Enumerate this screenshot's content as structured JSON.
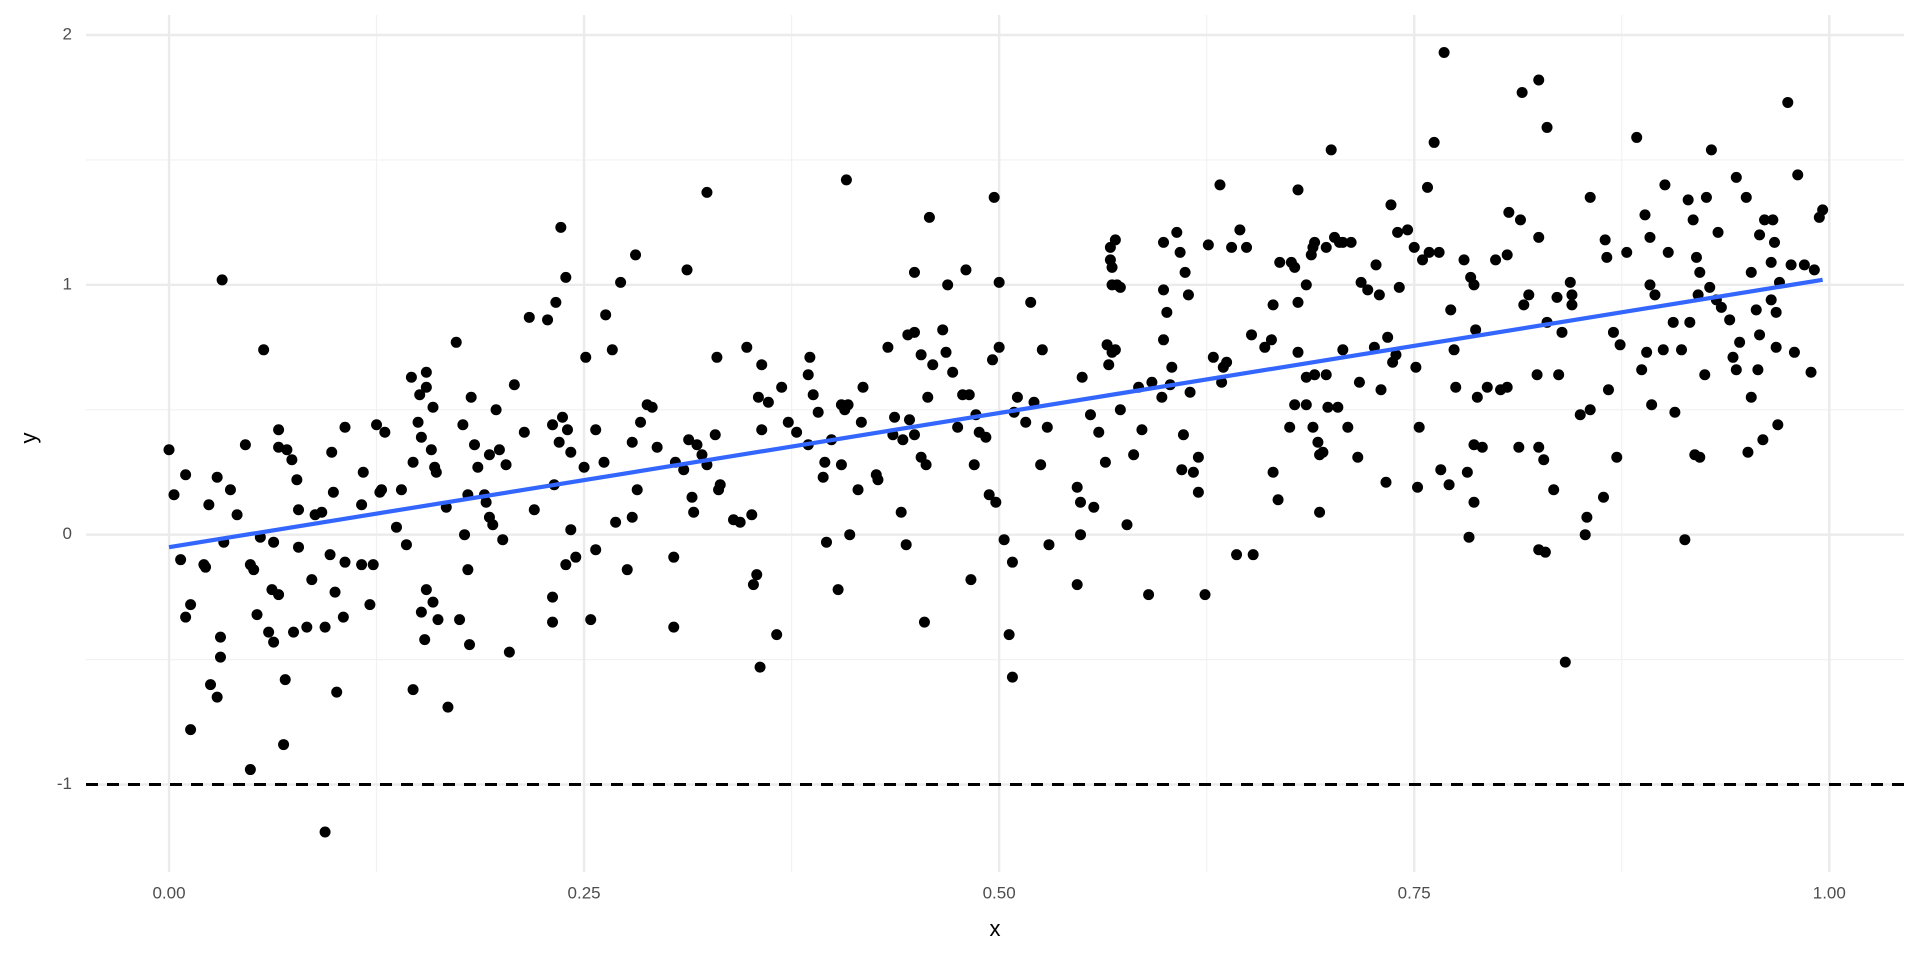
{
  "chart_data": {
    "type": "scatter",
    "x_label": "x",
    "y_label": "y",
    "xlim": [
      -0.05,
      1.045
    ],
    "ylim": [
      -1.35,
      2.08
    ],
    "xticks": [
      {
        "value": 0,
        "label": "0.00"
      },
      {
        "value": 0.25,
        "label": "0.25"
      },
      {
        "value": 0.5,
        "label": "0.50"
      },
      {
        "value": 0.75,
        "label": "0.75"
      },
      {
        "value": 1,
        "label": "1.00"
      }
    ],
    "yticks": [
      -1,
      0,
      1,
      2
    ],
    "xminor": [
      0.125,
      0.375,
      0.625,
      0.875
    ],
    "yminor": [
      -0.5,
      0.5,
      1.5
    ],
    "grid": true,
    "hline": {
      "y": -1,
      "color": "#000000",
      "dashed": true
    },
    "series": [
      {
        "type": "scatter",
        "color": "#000000",
        "x": [
          0.0,
          0.003,
          0.007,
          0.01,
          0.01,
          0.013,
          0.013,
          0.021,
          0.022,
          0.024,
          0.025,
          0.029,
          0.029,
          0.031,
          0.031,
          0.032,
          0.033,
          0.037,
          0.041,
          0.046,
          0.049,
          0.049,
          0.051,
          0.053,
          0.055,
          0.057,
          0.06,
          0.062,
          0.063,
          0.063,
          0.066,
          0.066,
          0.066,
          0.069,
          0.07,
          0.071,
          0.074,
          0.075,
          0.077,
          0.078,
          0.078,
          0.083,
          0.086,
          0.088,
          0.092,
          0.094,
          0.094,
          0.097,
          0.098,
          0.099,
          0.1,
          0.101,
          0.105,
          0.106,
          0.106,
          0.116,
          0.116,
          0.117,
          0.121,
          0.123,
          0.125,
          0.127,
          0.128,
          0.13,
          0.137,
          0.14,
          0.143,
          0.146,
          0.147,
          0.147,
          0.15,
          0.151,
          0.152,
          0.152,
          0.154,
          0.155,
          0.155,
          0.155,
          0.158,
          0.159,
          0.159,
          0.16,
          0.161,
          0.162,
          0.167,
          0.168,
          0.173,
          0.175,
          0.177,
          0.178,
          0.18,
          0.18,
          0.181,
          0.182,
          0.184,
          0.186,
          0.19,
          0.191,
          0.193,
          0.193,
          0.195,
          0.197,
          0.199,
          0.201,
          0.203,
          0.205,
          0.208,
          0.214,
          0.217,
          0.22,
          0.228,
          0.231,
          0.231,
          0.231,
          0.232,
          0.233,
          0.235,
          0.236,
          0.237,
          0.239,
          0.239,
          0.24,
          0.242,
          0.242,
          0.245,
          0.25,
          0.251,
          0.254,
          0.257,
          0.257,
          0.262,
          0.263,
          0.267,
          0.269,
          0.272,
          0.276,
          0.279,
          0.279,
          0.281,
          0.282,
          0.284,
          0.288,
          0.291,
          0.294,
          0.304,
          0.304,
          0.305,
          0.31,
          0.312,
          0.313,
          0.315,
          0.316,
          0.318,
          0.321,
          0.324,
          0.324,
          0.329,
          0.33,
          0.331,
          0.332,
          0.34,
          0.344,
          0.348,
          0.351,
          0.352,
          0.354,
          0.355,
          0.356,
          0.357,
          0.357,
          0.361,
          0.366,
          0.369,
          0.373,
          0.378,
          0.385,
          0.385,
          0.386,
          0.388,
          0.391,
          0.394,
          0.395,
          0.396,
          0.399,
          0.403,
          0.405,
          0.405,
          0.407,
          0.408,
          0.409,
          0.41,
          0.415,
          0.417,
          0.418,
          0.426,
          0.427,
          0.433,
          0.436,
          0.437,
          0.441,
          0.442,
          0.444,
          0.445,
          0.446,
          0.449,
          0.449,
          0.449,
          0.453,
          0.453,
          0.455,
          0.456,
          0.457,
          0.458,
          0.46,
          0.466,
          0.468,
          0.469,
          0.472,
          0.475,
          0.478,
          0.48,
          0.482,
          0.483,
          0.485,
          0.486,
          0.488,
          0.492,
          0.494,
          0.496,
          0.497,
          0.498,
          0.5,
          0.5,
          0.503,
          0.506,
          0.508,
          0.508,
          0.509,
          0.511,
          0.516,
          0.519,
          0.521,
          0.525,
          0.526,
          0.529,
          0.53,
          0.547,
          0.547,
          0.549,
          0.549,
          0.55,
          0.555,
          0.557,
          0.56,
          0.564,
          0.565,
          0.566,
          0.567,
          0.567,
          0.568,
          0.568,
          0.568,
          0.57,
          0.57,
          0.571,
          0.573,
          0.573,
          0.577,
          0.581,
          0.584,
          0.586,
          0.59,
          0.592,
          0.598,
          0.599,
          0.599,
          0.599,
          0.601,
          0.603,
          0.604,
          0.607,
          0.609,
          0.61,
          0.611,
          0.612,
          0.614,
          0.615,
          0.617,
          0.62,
          0.62,
          0.624,
          0.626,
          0.629,
          0.633,
          0.634,
          0.635,
          0.637,
          0.64,
          0.643,
          0.645,
          0.649,
          0.652,
          0.653,
          0.66,
          0.664,
          0.665,
          0.665,
          0.668,
          0.669,
          0.675,
          0.676,
          0.678,
          0.678,
          0.68,
          0.68,
          0.68,
          0.685,
          0.685,
          0.685,
          0.688,
          0.689,
          0.689,
          0.69,
          0.69,
          0.692,
          0.693,
          0.693,
          0.695,
          0.697,
          0.697,
          0.698,
          0.7,
          0.702,
          0.704,
          0.705,
          0.707,
          0.707,
          0.71,
          0.712,
          0.716,
          0.717,
          0.718,
          0.722,
          0.726,
          0.727,
          0.729,
          0.73,
          0.733,
          0.734,
          0.736,
          0.737,
          0.739,
          0.74,
          0.741,
          0.746,
          0.75,
          0.751,
          0.752,
          0.753,
          0.755,
          0.758,
          0.759,
          0.762,
          0.765,
          0.766,
          0.768,
          0.771,
          0.772,
          0.774,
          0.775,
          0.78,
          0.782,
          0.783,
          0.784,
          0.786,
          0.786,
          0.786,
          0.787,
          0.788,
          0.791,
          0.794,
          0.799,
          0.802,
          0.806,
          0.806,
          0.807,
          0.813,
          0.814,
          0.815,
          0.816,
          0.819,
          0.824,
          0.825,
          0.825,
          0.825,
          0.825,
          0.828,
          0.829,
          0.83,
          0.83,
          0.834,
          0.836,
          0.837,
          0.839,
          0.841,
          0.844,
          0.845,
          0.845,
          0.85,
          0.853,
          0.854,
          0.856,
          0.856,
          0.864,
          0.865,
          0.866,
          0.867,
          0.87,
          0.872,
          0.874,
          0.878,
          0.884,
          0.887,
          0.889,
          0.89,
          0.892,
          0.893,
          0.892,
          0.895,
          0.9,
          0.901,
          0.903,
          0.906,
          0.907,
          0.911,
          0.913,
          0.915,
          0.916,
          0.918,
          0.919,
          0.92,
          0.922,
          0.921,
          0.922,
          0.925,
          0.926,
          0.928,
          0.929,
          0.932,
          0.933,
          0.935,
          0.94,
          0.942,
          0.944,
          0.944,
          0.946,
          0.95,
          0.951,
          0.953,
          0.953,
          0.956,
          0.957,
          0.958,
          0.958,
          0.96,
          0.961,
          0.965,
          0.965,
          0.966,
          0.968,
          0.967,
          0.968,
          0.969,
          0.97,
          0.975,
          0.977,
          0.979,
          0.981,
          0.985,
          0.989,
          0.991,
          0.994,
          0.996
        ],
        "values": [
          0.34,
          0.16,
          -0.1,
          0.24,
          -0.33,
          -0.28,
          -0.78,
          -0.12,
          -0.13,
          0.12,
          -0.6,
          0.23,
          -0.65,
          -0.49,
          -0.41,
          1.02,
          -0.03,
          0.18,
          0.08,
          0.36,
          -0.94,
          -0.12,
          -0.14,
          -0.32,
          -0.01,
          0.74,
          -0.39,
          -0.22,
          -0.03,
          -0.43,
          0.42,
          -0.24,
          0.35,
          -0.84,
          -0.58,
          0.34,
          0.3,
          -0.39,
          0.22,
          0.1,
          -0.05,
          -0.37,
          -0.18,
          0.08,
          0.09,
          -1.19,
          -0.37,
          -0.08,
          0.33,
          0.17,
          -0.23,
          -0.63,
          -0.33,
          -0.11,
          0.43,
          0.12,
          -0.12,
          0.25,
          -0.28,
          -0.12,
          0.44,
          0.17,
          0.18,
          0.41,
          0.03,
          0.18,
          -0.04,
          0.63,
          -0.62,
          0.29,
          0.45,
          0.56,
          -0.31,
          0.39,
          -0.42,
          0.65,
          -0.22,
          0.59,
          0.34,
          -0.27,
          0.51,
          0.27,
          0.25,
          -0.34,
          0.11,
          -0.69,
          0.77,
          -0.34,
          0.44,
          0.0,
          0.16,
          -0.14,
          -0.44,
          0.55,
          0.36,
          0.27,
          0.16,
          0.13,
          0.07,
          0.32,
          0.04,
          0.5,
          0.34,
          -0.02,
          0.28,
          -0.47,
          0.6,
          0.41,
          0.87,
          0.1,
          0.86,
          -0.35,
          -0.25,
          0.44,
          0.2,
          0.93,
          0.37,
          1.23,
          0.47,
          -0.12,
          1.03,
          0.42,
          0.02,
          0.33,
          -0.09,
          0.27,
          0.71,
          -0.34,
          0.42,
          -0.06,
          0.29,
          0.88,
          0.74,
          0.05,
          1.01,
          -0.14,
          0.37,
          0.07,
          1.12,
          0.18,
          0.45,
          0.52,
          0.51,
          0.35,
          -0.37,
          -0.09,
          0.29,
          0.26,
          1.06,
          0.38,
          0.15,
          0.09,
          0.36,
          0.32,
          0.28,
          1.37,
          0.4,
          0.71,
          0.18,
          0.2,
          0.06,
          0.05,
          0.75,
          0.08,
          -0.2,
          -0.16,
          0.55,
          -0.53,
          0.42,
          0.68,
          0.53,
          -0.4,
          0.59,
          0.45,
          0.41,
          0.36,
          0.64,
          0.71,
          0.56,
          0.49,
          0.23,
          0.29,
          -0.03,
          0.38,
          -0.22,
          0.28,
          0.52,
          0.5,
          1.42,
          0.52,
          0.0,
          0.18,
          0.45,
          0.59,
          0.24,
          0.22,
          0.75,
          0.4,
          0.47,
          0.09,
          0.38,
          -0.04,
          0.8,
          0.46,
          0.81,
          1.05,
          0.4,
          0.72,
          0.31,
          -0.35,
          0.28,
          0.55,
          1.27,
          0.68,
          0.82,
          0.73,
          1.0,
          0.65,
          0.43,
          0.56,
          1.06,
          0.56,
          -0.18,
          0.28,
          0.48,
          0.41,
          0.39,
          0.16,
          0.7,
          1.35,
          0.13,
          1.01,
          0.75,
          -0.02,
          -0.4,
          -0.57,
          -0.11,
          0.49,
          0.55,
          0.45,
          0.93,
          0.53,
          0.28,
          0.74,
          0.43,
          -0.04,
          -0.2,
          0.19,
          0.13,
          0.0,
          0.63,
          0.48,
          0.11,
          0.41,
          0.29,
          0.76,
          0.68,
          1.15,
          1.1,
          1.07,
          1.0,
          0.73,
          0.74,
          1.18,
          1.0,
          0.99,
          0.5,
          0.04,
          0.32,
          0.59,
          0.42,
          -0.24,
          0.61,
          0.55,
          0.78,
          1.17,
          0.98,
          0.89,
          0.6,
          0.67,
          1.21,
          1.13,
          0.26,
          0.4,
          1.05,
          0.96,
          0.57,
          0.25,
          0.17,
          0.31,
          -0.24,
          1.16,
          0.71,
          1.4,
          0.61,
          0.67,
          0.69,
          1.15,
          -0.08,
          1.22,
          1.15,
          0.8,
          -0.08,
          0.75,
          0.78,
          0.25,
          0.92,
          0.14,
          1.09,
          0.43,
          1.09,
          1.07,
          0.52,
          1.38,
          0.73,
          0.93,
          1.0,
          0.52,
          0.63,
          1.12,
          1.15,
          0.43,
          1.17,
          0.64,
          0.37,
          0.32,
          0.09,
          0.33,
          1.15,
          0.64,
          0.51,
          1.54,
          1.19,
          0.51,
          1.17,
          0.74,
          1.17,
          0.43,
          1.17,
          0.31,
          0.61,
          1.01,
          0.98,
          0.75,
          1.08,
          0.96,
          0.58,
          0.21,
          0.79,
          1.32,
          0.69,
          0.72,
          1.21,
          0.99,
          1.22,
          1.15,
          0.67,
          0.19,
          0.43,
          1.1,
          1.39,
          1.13,
          1.57,
          1.13,
          0.26,
          1.93,
          0.2,
          0.9,
          0.74,
          0.59,
          1.1,
          0.25,
          -0.01,
          1.03,
          0.13,
          1.0,
          0.36,
          0.82,
          0.55,
          0.35,
          0.59,
          1.1,
          0.58,
          1.12,
          0.59,
          1.29,
          0.35,
          1.26,
          1.77,
          0.92,
          0.96,
          0.64,
          1.82,
          -0.06,
          0.35,
          1.19,
          0.3,
          -0.07,
          1.63,
          0.85,
          0.18,
          0.95,
          0.64,
          0.81,
          -0.51,
          1.01,
          0.92,
          0.96,
          0.48,
          0.0,
          0.07,
          1.35,
          0.5,
          0.15,
          1.18,
          1.11,
          0.58,
          0.81,
          0.31,
          0.76,
          1.13,
          1.59,
          0.66,
          1.28,
          0.73,
          1.0,
          0.52,
          1.19,
          0.96,
          0.74,
          1.4,
          1.13,
          0.85,
          0.49,
          0.74,
          -0.02,
          1.34,
          0.85,
          1.26,
          0.32,
          1.11,
          0.31,
          0.96,
          1.05,
          0.64,
          1.35,
          0.99,
          1.54,
          0.94,
          1.21,
          0.91,
          0.86,
          0.71,
          1.43,
          0.66,
          0.77,
          1.35,
          0.33,
          0.55,
          1.05,
          0.9,
          0.66,
          0.8,
          1.2,
          0.38,
          1.26,
          0.94,
          1.09,
          1.26,
          0.89,
          1.17,
          0.75,
          0.44,
          1.01,
          1.73,
          1.08,
          0.73,
          1.44,
          1.08,
          0.65,
          1.06,
          1.27,
          1.3
        ]
      },
      {
        "type": "line",
        "color": "#3366ff",
        "x": [
          0,
          0.996
        ],
        "values": [
          -0.05,
          1.02
        ]
      }
    ]
  }
}
